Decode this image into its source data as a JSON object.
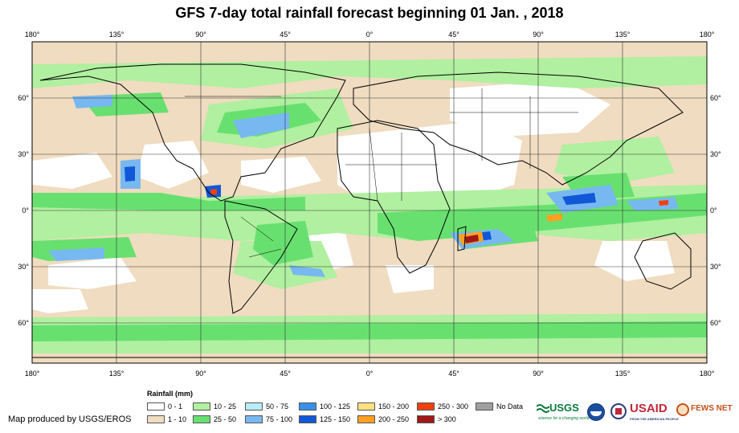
{
  "title": "GFS 7-day total rainfall forecast beginning 01 Jan. , 2018",
  "axes": {
    "lon_labels": [
      "180°",
      "135°",
      "90°",
      "45°",
      "0°",
      "45°",
      "90°",
      "135°",
      "180°"
    ],
    "lat_labels": [
      "60°",
      "30°",
      "0°",
      "30°",
      "60°"
    ]
  },
  "legend": {
    "title": "Rainfall (mm)",
    "items": [
      {
        "label": "0 - 1",
        "color": "#ffffff"
      },
      {
        "label": "1 - 10",
        "color": "#f0dcc0"
      },
      {
        "label": "10 - 25",
        "color": "#b0f0a0"
      },
      {
        "label": "25 - 50",
        "color": "#68e070"
      },
      {
        "label": "50 - 75",
        "color": "#b8ecf8"
      },
      {
        "label": "75 - 100",
        "color": "#78b8f0"
      },
      {
        "label": "100 - 125",
        "color": "#3890e8"
      },
      {
        "label": "125 - 150",
        "color": "#1058d8"
      },
      {
        "label": "150 - 200",
        "color": "#ffe080"
      },
      {
        "label": "200 - 250",
        "color": "#ffa020"
      },
      {
        "label": "250 - 300",
        "color": "#f04010"
      },
      {
        "label": "> 300",
        "color": "#a01818"
      },
      {
        "label": "No Data",
        "color": "#a0a0a0"
      }
    ]
  },
  "credit": "Map produced by USGS/EROS",
  "logos": {
    "usgs": "USGS",
    "usgs_tagline": "science for a changing world",
    "usaid": "USAID",
    "usaid_tagline": "FROM THE AMERICAN PEOPLE",
    "fewsnet": "FEWS NET"
  }
}
